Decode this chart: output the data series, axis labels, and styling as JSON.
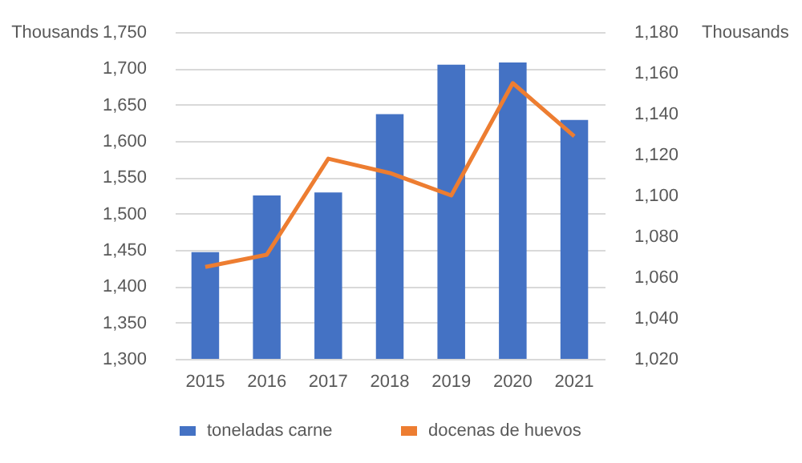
{
  "chart_data": {
    "type": "bar",
    "categories": [
      "2015",
      "2016",
      "2017",
      "2018",
      "2019",
      "2020",
      "2021"
    ],
    "series": [
      {
        "name": "toneladas carne",
        "color": "#4472c4",
        "values": [
          1447,
          1525,
          1529,
          1637,
          1705,
          1708,
          1629
        ]
      },
      {
        "name": "docenas de huevos",
        "type": "line",
        "axis": "y2",
        "color": "#ed7d31",
        "values": [
          1065,
          1071,
          1118,
          1111,
          1100,
          1155,
          1129
        ]
      }
    ],
    "ylabel": "Thousands",
    "y2label": "Thousands",
    "ylim": [
      1300,
      1750
    ],
    "yticks": [
      {
        "value": 1300,
        "label": "1,300"
      },
      {
        "value": 1350,
        "label": "1,350"
      },
      {
        "value": 1400,
        "label": "1,400"
      },
      {
        "value": 1450,
        "label": "1,450"
      },
      {
        "value": 1500,
        "label": "1,500"
      },
      {
        "value": 1550,
        "label": "1,550"
      },
      {
        "value": 1600,
        "label": "1,600"
      },
      {
        "value": 1650,
        "label": "1,650"
      },
      {
        "value": 1700,
        "label": "1,700"
      },
      {
        "value": 1750,
        "label": "1,750"
      }
    ],
    "y2lim": [
      1020,
      1180
    ],
    "y2ticks": [
      {
        "value": 1020,
        "label": "1,020"
      },
      {
        "value": 1040,
        "label": "1,040"
      },
      {
        "value": 1060,
        "label": "1,060"
      },
      {
        "value": 1080,
        "label": "1,080"
      },
      {
        "value": 1100,
        "label": "1,100"
      },
      {
        "value": 1120,
        "label": "1,120"
      },
      {
        "value": 1140,
        "label": "1,140"
      },
      {
        "value": 1160,
        "label": "1,160"
      },
      {
        "value": 1180,
        "label": "1,180"
      }
    ],
    "grid": "y",
    "legend": "bottom",
    "marker": "none",
    "line_style": "solid"
  }
}
